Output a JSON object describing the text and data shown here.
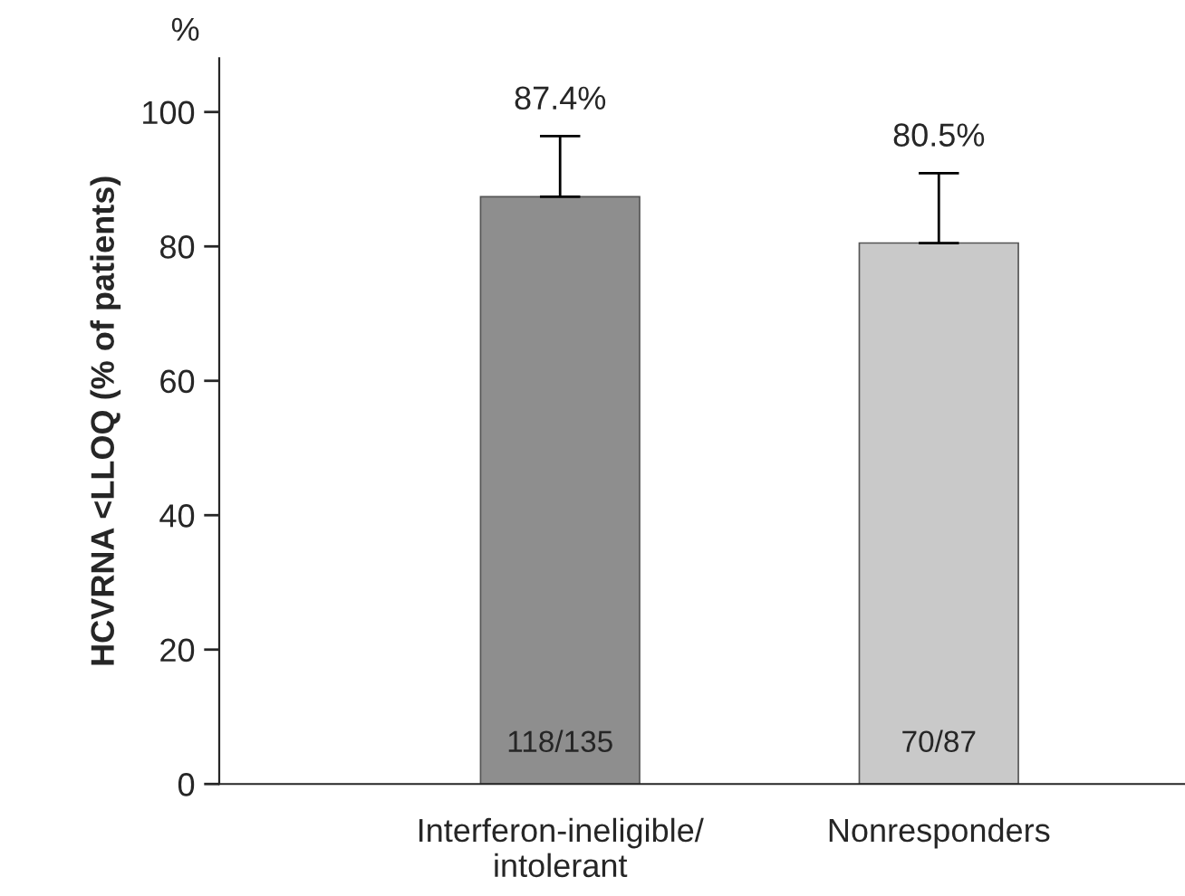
{
  "chart_data": {
    "type": "bar",
    "ylabel": "HCVRNA <LLOQ (% of patients)",
    "categories": [
      "Interferon-ineligible/\nintolerant",
      "Nonresponders"
    ],
    "values": [
      87.4,
      80.5
    ],
    "colors": [
      "#8e8e8e",
      "#c9c9c9"
    ],
    "errors": [
      [
        87.4,
        96.4
      ],
      [
        80.5,
        90.9
      ]
    ],
    "value_labels": [
      "87.4%",
      "80.5%"
    ],
    "annotations": [
      "%",
      "118/135",
      "70/87"
    ],
    "ylim": [
      0,
      108
    ],
    "yticks": [
      0,
      20,
      40,
      60,
      80,
      100
    ],
    "grid": false,
    "legend": false
  }
}
